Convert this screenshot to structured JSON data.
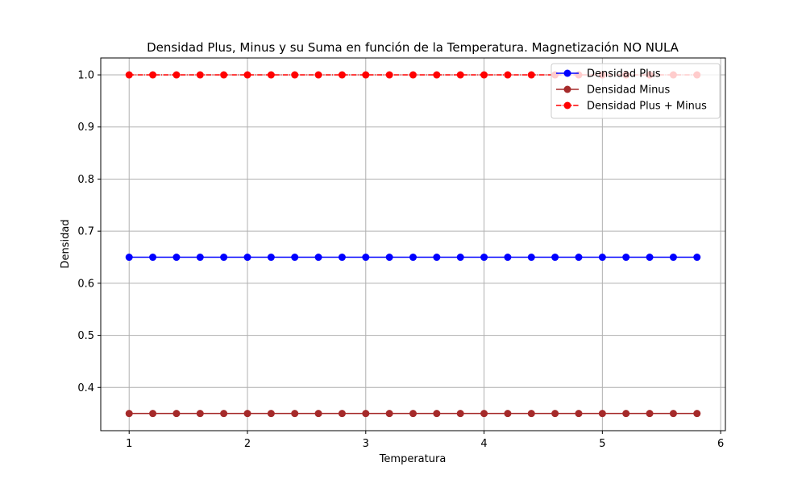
{
  "chart_data": {
    "type": "line",
    "title": "Densidad Plus, Minus y su Suma en función de la Temperatura. Magnetización NO NULA",
    "xlabel": "Temperatura",
    "ylabel": "Densidad",
    "xlim": [
      0.76,
      6.04
    ],
    "ylim": [
      0.317,
      1.0325
    ],
    "xticks": [
      1,
      2,
      3,
      4,
      5,
      6
    ],
    "yticks": [
      0.4,
      0.5,
      0.6,
      0.7,
      0.8,
      0.9,
      1.0
    ],
    "xtick_labels": [
      "1",
      "2",
      "3",
      "4",
      "5",
      "6"
    ],
    "ytick_labels": [
      "0.4",
      "0.5",
      "0.6",
      "0.7",
      "0.8",
      "0.9",
      "1.0"
    ],
    "grid": true,
    "legend_position": "upper right",
    "x": [
      1.0,
      1.2,
      1.4,
      1.6,
      1.8,
      2.0,
      2.2,
      2.4,
      2.6,
      2.8,
      3.0,
      3.2,
      3.4,
      3.6,
      3.8,
      4.0,
      4.2,
      4.4,
      4.6,
      4.8,
      5.0,
      5.2,
      5.4,
      5.6,
      5.8
    ],
    "series": [
      {
        "name": "Densidad Plus",
        "color": "#0000ff",
        "line_style": "solid",
        "values": [
          0.65,
          0.65,
          0.65,
          0.65,
          0.65,
          0.65,
          0.65,
          0.65,
          0.65,
          0.65,
          0.65,
          0.65,
          0.65,
          0.65,
          0.65,
          0.65,
          0.65,
          0.65,
          0.65,
          0.65,
          0.65,
          0.65,
          0.65,
          0.65,
          0.65
        ]
      },
      {
        "name": "Densidad Minus",
        "color": "#a52a2a",
        "line_style": "solid",
        "values": [
          0.35,
          0.35,
          0.35,
          0.35,
          0.35,
          0.35,
          0.35,
          0.35,
          0.35,
          0.35,
          0.35,
          0.35,
          0.35,
          0.35,
          0.35,
          0.35,
          0.35,
          0.35,
          0.35,
          0.35,
          0.35,
          0.35,
          0.35,
          0.35,
          0.35
        ]
      },
      {
        "name": "Densidad Plus + Minus",
        "color": "#ff0000",
        "line_style": "dashdot",
        "values": [
          1.0,
          1.0,
          1.0,
          1.0,
          1.0,
          1.0,
          1.0,
          1.0,
          1.0,
          1.0,
          1.0,
          1.0,
          1.0,
          1.0,
          1.0,
          1.0,
          1.0,
          1.0,
          1.0,
          1.0,
          1.0,
          1.0,
          1.0,
          1.0,
          1.0
        ]
      }
    ]
  }
}
